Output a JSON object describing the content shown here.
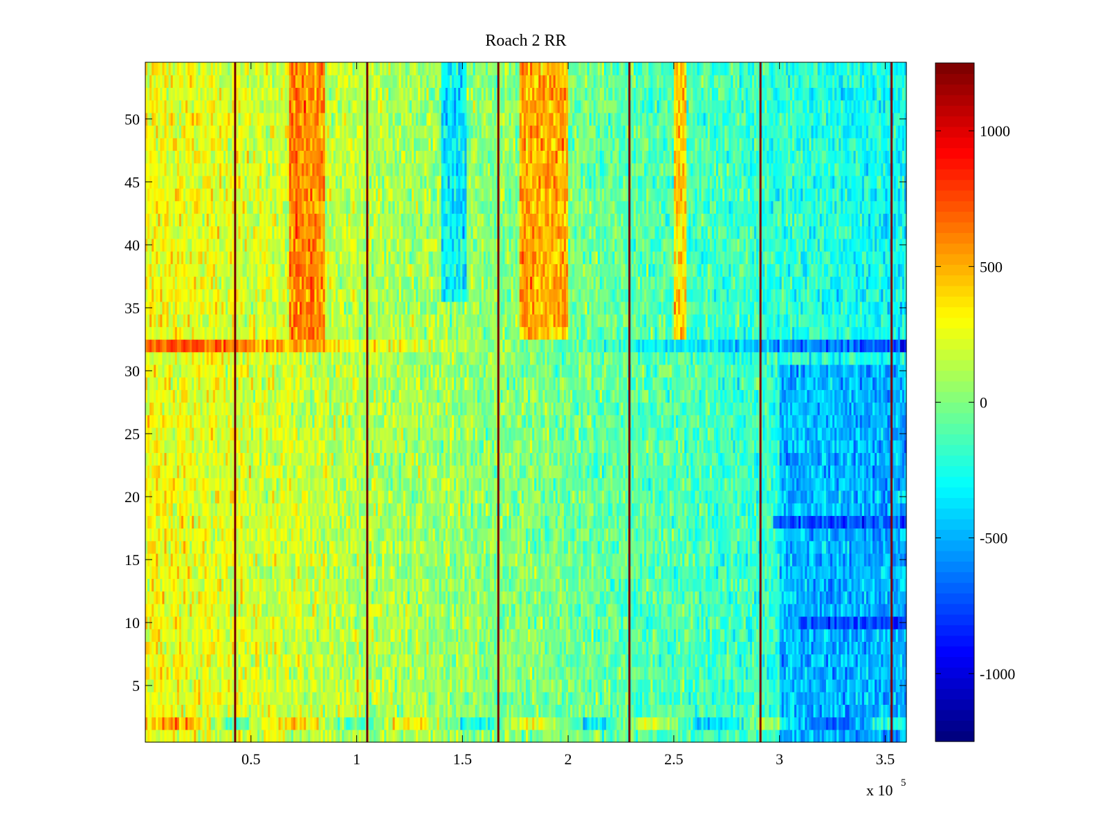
{
  "chart_data": {
    "type": "heatmap",
    "title": "Roach 2 RR",
    "xlabel": "",
    "ylabel": "",
    "x_range": [
      0,
      360000
    ],
    "y_range": [
      0.5,
      54.5
    ],
    "rows": 54,
    "columns": 360,
    "x_exponent_label": "x 10",
    "x_exponent_power": "5",
    "x_ticks": [
      {
        "value": 50000,
        "label": "0.5"
      },
      {
        "value": 100000,
        "label": "1"
      },
      {
        "value": 150000,
        "label": "1.5"
      },
      {
        "value": 200000,
        "label": "2"
      },
      {
        "value": 250000,
        "label": "2.5"
      },
      {
        "value": 300000,
        "label": "3"
      },
      {
        "value": 350000,
        "label": "3.5"
      }
    ],
    "y_ticks": [
      {
        "value": 5,
        "label": "5"
      },
      {
        "value": 10,
        "label": "10"
      },
      {
        "value": 15,
        "label": "15"
      },
      {
        "value": 20,
        "label": "20"
      },
      {
        "value": 25,
        "label": "25"
      },
      {
        "value": 30,
        "label": "30"
      },
      {
        "value": 35,
        "label": "35"
      },
      {
        "value": 40,
        "label": "40"
      },
      {
        "value": 45,
        "label": "45"
      },
      {
        "value": 50,
        "label": "50"
      }
    ],
    "colorbar": {
      "colormap": "jet",
      "range": [
        -1250,
        1250
      ],
      "ticks": [
        {
          "value": -1000,
          "label": "-1000"
        },
        {
          "value": -500,
          "label": "-500"
        },
        {
          "value": 0,
          "label": "0"
        },
        {
          "value": 500,
          "label": "500"
        },
        {
          "value": 1000,
          "label": "1000"
        }
      ]
    },
    "vertical_stripes": [
      {
        "x": 42500,
        "value": 1250
      },
      {
        "x": 105000,
        "value": 1250
      },
      {
        "x": 167000,
        "value": 1250
      },
      {
        "x": 229000,
        "value": 1250
      },
      {
        "x": 291000,
        "value": 1250
      },
      {
        "x": 353000,
        "value": 1250
      }
    ],
    "approx_pattern": {
      "base_left_value": 300,
      "base_right_value": -300,
      "hot_bands": [
        {
          "x_from": 68000,
          "x_to": 85000,
          "rows_from": 33,
          "rows_to": 54,
          "value": 800
        },
        {
          "x_from": 177000,
          "x_to": 200000,
          "rows_from": 33,
          "rows_to": 54,
          "value": 750
        },
        {
          "x_from": 250000,
          "x_to": 256000,
          "rows_from": 33,
          "rows_to": 54,
          "value": 650
        }
      ],
      "cold_bands": [
        {
          "x_from": 140000,
          "x_to": 152000,
          "rows_from": 36,
          "rows_to": 54,
          "value": -600
        },
        {
          "x_from": 300000,
          "x_to": 360000,
          "rows_from": 1,
          "rows_to": 30,
          "value": -650
        }
      ],
      "special_rows": [
        {
          "row": 32,
          "value_left": 800,
          "value_right": -800
        },
        {
          "row": 18,
          "x_from": 297000,
          "value": -850
        },
        {
          "row": 10,
          "x_from": 310000,
          "value": -900
        },
        {
          "row": 2,
          "x_from": 0,
          "value_pattern": "mixed"
        }
      ]
    }
  }
}
